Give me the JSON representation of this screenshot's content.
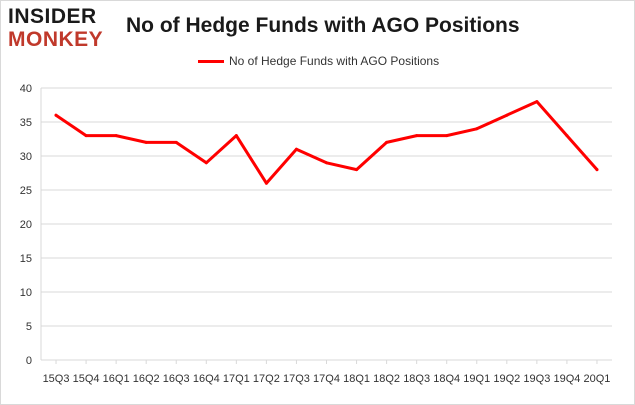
{
  "logo": {
    "line1": "INSIDER",
    "line2": "MONKEY"
  },
  "chart_data": {
    "type": "line",
    "title": "No of Hedge Funds with AGO Positions",
    "categories": [
      "15Q3",
      "15Q4",
      "16Q1",
      "16Q2",
      "16Q3",
      "16Q4",
      "17Q1",
      "17Q2",
      "17Q3",
      "17Q4",
      "18Q1",
      "18Q2",
      "18Q3",
      "18Q4",
      "19Q1",
      "19Q2",
      "19Q3",
      "19Q4",
      "20Q1"
    ],
    "series": [
      {
        "name": "No of Hedge Funds with AGO Positions",
        "values": [
          36,
          33,
          33,
          32,
          32,
          29,
          33,
          26,
          31,
          29,
          28,
          32,
          33,
          33,
          34,
          36,
          38,
          33,
          28
        ],
        "color": "#ff0000"
      }
    ],
    "xlabel": "",
    "ylabel": "",
    "ylim": [
      0,
      40
    ],
    "yticks": [
      0,
      5,
      10,
      15,
      20,
      25,
      30,
      35,
      40
    ],
    "grid": true,
    "legend_position": "top"
  },
  "colors": {
    "line": "#ff0000",
    "grid": "#d9d9d9",
    "brand_red": "#c0392b"
  }
}
